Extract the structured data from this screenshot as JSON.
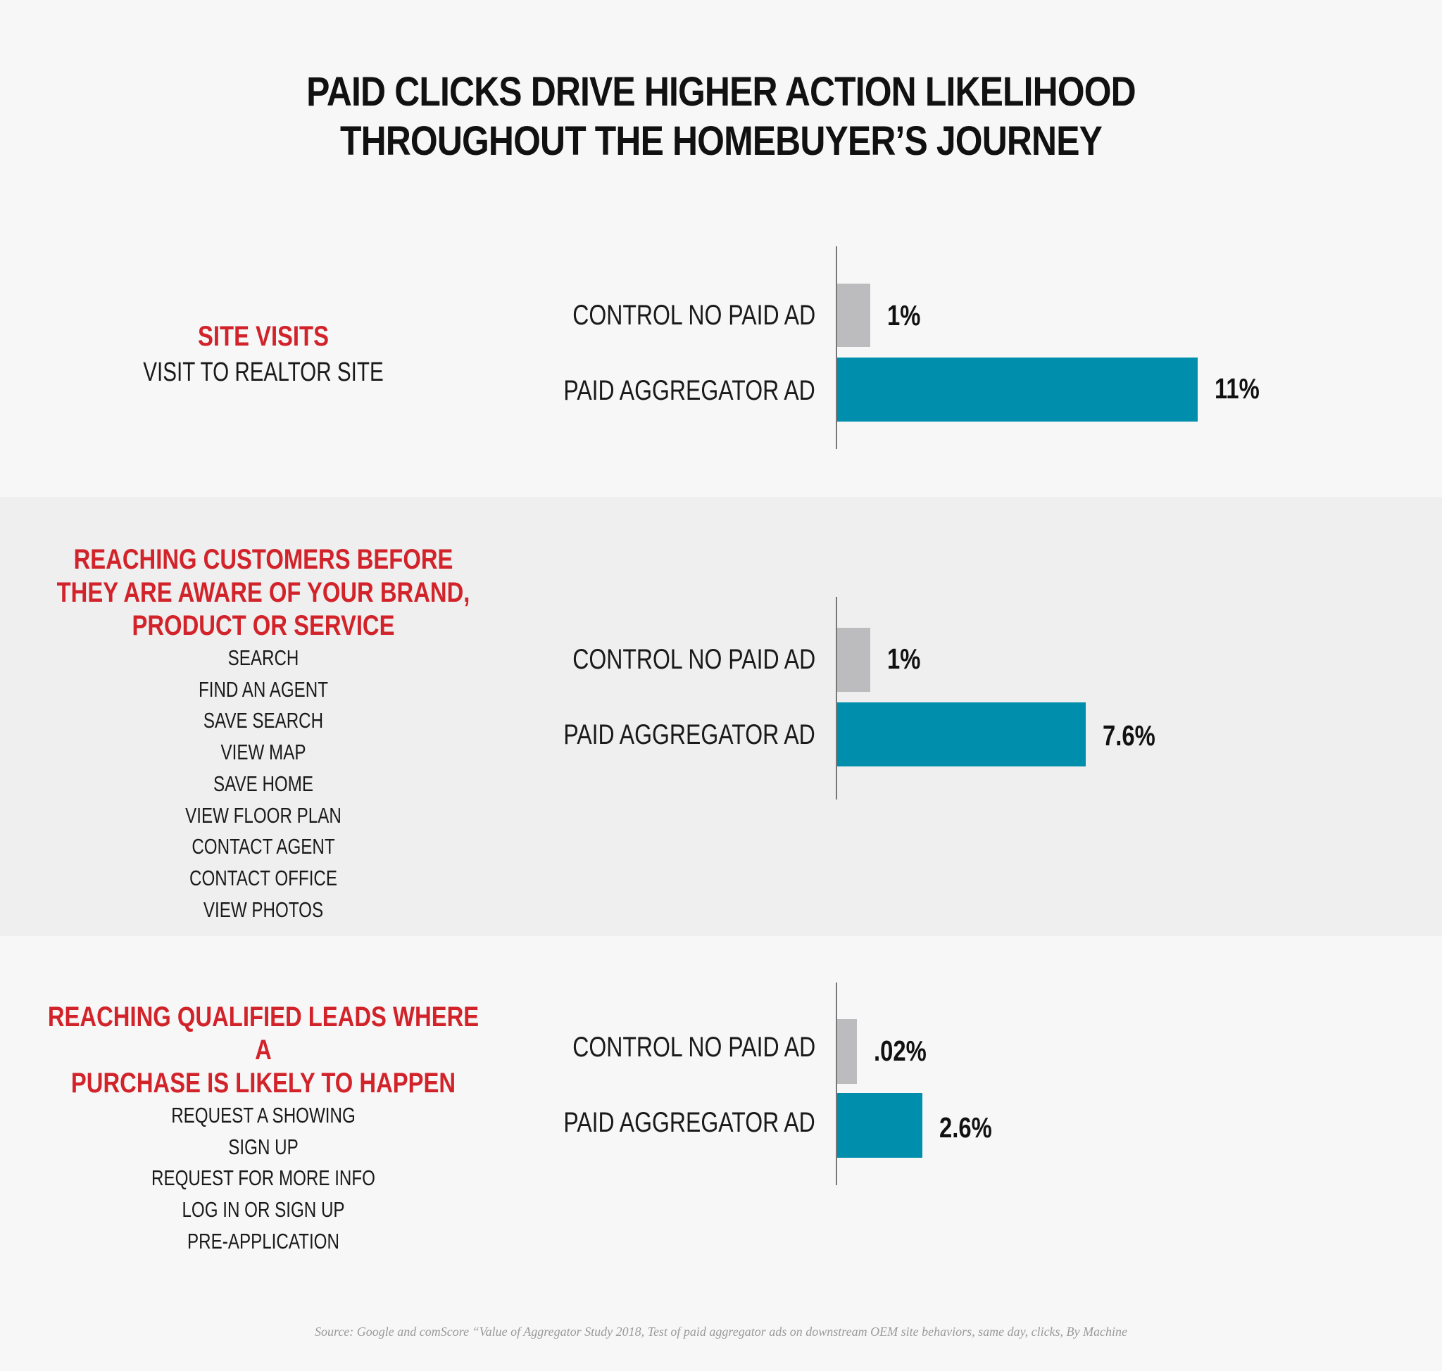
{
  "title": {
    "line1": "PAID CLICKS DRIVE HIGHER ACTION LIKELIHOOD",
    "line2": "THROUGHOUT THE HOMEBUYER’S JOURNEY"
  },
  "colors": {
    "control": "#bcbcbe",
    "paid": "#008ead",
    "heading": "#d2232a",
    "band_shade": "#efefef"
  },
  "sections": [
    {
      "heading_lines": [
        "SITE VISITS"
      ],
      "items": [
        "VISIT TO REALTOR SITE"
      ]
    },
    {
      "heading_lines": [
        "REACHING CUSTOMERS BEFORE",
        "THEY ARE AWARE OF YOUR BRAND,",
        "PRODUCT OR SERVICE"
      ],
      "items": [
        "SEARCH",
        "FIND AN AGENT",
        "SAVE SEARCH",
        "VIEW MAP",
        "SAVE HOME",
        "VIEW FLOOR PLAN",
        "CONTACT AGENT",
        "CONTACT OFFICE",
        "VIEW PHOTOS"
      ]
    },
    {
      "heading_lines": [
        "REACHING QUALIFIED LEADS WHERE A",
        "PURCHASE IS LIKELY TO HAPPEN"
      ],
      "items": [
        "REQUEST A SHOWING",
        "SIGN UP",
        "REQUEST FOR MORE INFO",
        "LOG IN OR SIGN UP",
        "PRE-APPLICATION"
      ]
    }
  ],
  "chart_data": [
    {
      "type": "bar",
      "orientation": "horizontal",
      "categories": [
        "CONTROL NO PAID AD",
        "PAID AGGREGATOR AD"
      ],
      "values": [
        1,
        11
      ],
      "value_labels": [
        "1%",
        "11%"
      ],
      "unit": "%"
    },
    {
      "type": "bar",
      "orientation": "horizontal",
      "categories": [
        "CONTROL NO PAID AD",
        "PAID AGGREGATOR AD"
      ],
      "values": [
        1,
        7.6
      ],
      "value_labels": [
        "1%",
        "7.6%"
      ],
      "unit": "%"
    },
    {
      "type": "bar",
      "orientation": "horizontal",
      "categories": [
        "CONTROL NO PAID AD",
        "PAID AGGREGATOR AD"
      ],
      "values": [
        0.02,
        2.6
      ],
      "value_labels": [
        ".02%",
        "2.6%"
      ],
      "unit": "%"
    }
  ],
  "source": "Source: Google and comScore “Value of Aggregator Study 2018, Test of paid aggregator ads on downstream OEM site behaviors, same day, clicks, By Machine"
}
